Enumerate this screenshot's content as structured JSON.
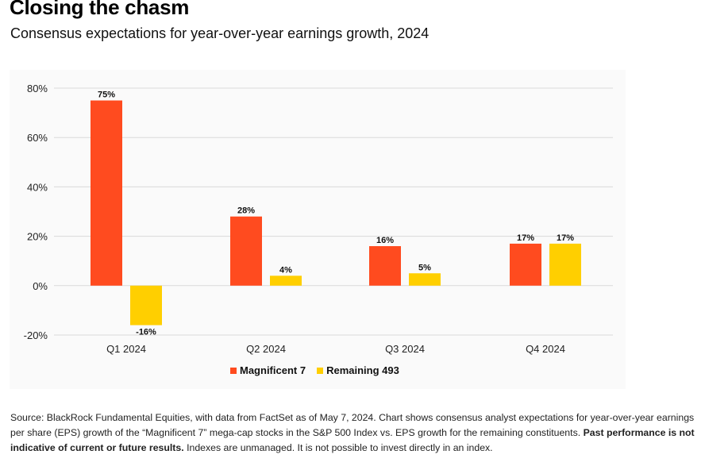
{
  "header": {
    "title": "Closing the chasm",
    "subtitle": "Consensus expectations for year-over-year earnings growth, 2024"
  },
  "chart_data": {
    "type": "bar",
    "title": "",
    "xlabel": "",
    "ylabel": "",
    "categories": [
      "Q1 2024",
      "Q2 2024",
      "Q3 2024",
      "Q4 2024"
    ],
    "series": [
      {
        "name": "Magnificent 7",
        "color": "#ff4b1f",
        "values": [
          75,
          28,
          16,
          17
        ],
        "labels": [
          "75%",
          "28%",
          "16%",
          "17%"
        ]
      },
      {
        "name": "Remaining 493",
        "color": "#ffcf00",
        "values": [
          -16,
          4,
          5,
          17
        ],
        "labels": [
          "-16%",
          "4%",
          "5%",
          "17%"
        ]
      }
    ],
    "ylim": [
      -20,
      80
    ],
    "yticks": [
      80,
      60,
      40,
      20,
      0,
      -20
    ],
    "ytick_labels": [
      "80%",
      "60%",
      "40%",
      "20%",
      "0%",
      "-20%"
    ],
    "grid": true,
    "legend": "bottom-center"
  },
  "footer": {
    "source_text": "Source: BlackRock Fundamental Equities, with data from FactSet as of May 7, 2024. Chart shows consensus analyst expectations for year-over-year earnings per share (EPS) growth of the “Magnificent 7” mega-cap stocks in the S&P 500 Index vs. EPS growth for the remaining constituents. ",
    "disclaimer_bold": "Past performance is not indicative of current or future results.",
    "disclaimer_rest": " Indexes are unmanaged. It is not possible to invest directly in an index."
  }
}
